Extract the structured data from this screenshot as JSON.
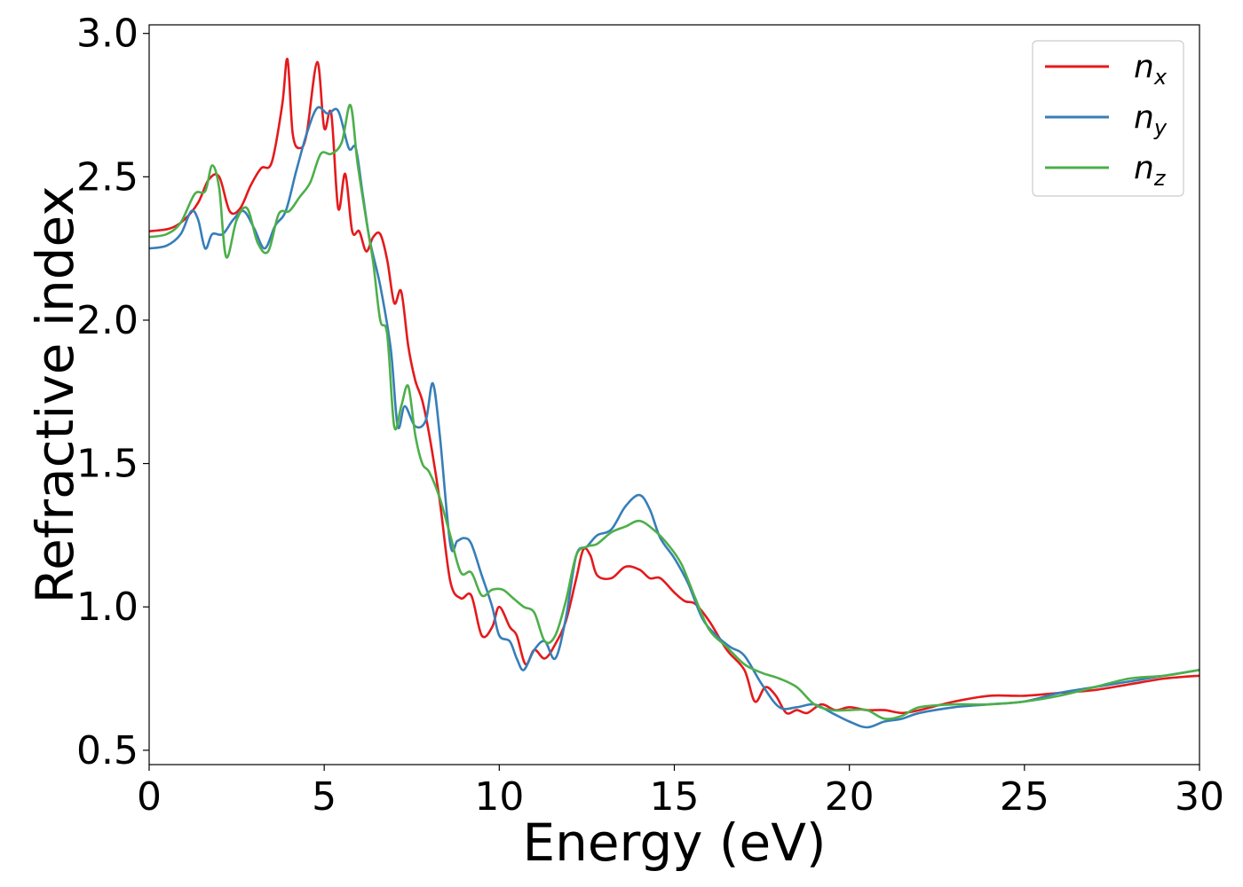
{
  "chart_data": {
    "type": "line",
    "title": "",
    "xlabel": "Energy (eV)",
    "ylabel": "Refractive index",
    "xlim": [
      0,
      30
    ],
    "ylim": [
      0.45,
      3.03
    ],
    "xticks": [
      0,
      5,
      10,
      15,
      20,
      25,
      30
    ],
    "xtick_labels": [
      "0",
      "5",
      "10",
      "15",
      "20",
      "25",
      "30"
    ],
    "yticks": [
      0.5,
      1.0,
      1.5,
      2.0,
      2.5,
      3.0
    ],
    "ytick_labels": [
      "0.5",
      "1.0",
      "1.5",
      "2.0",
      "2.5",
      "3.0"
    ],
    "grid": false,
    "legend_position": "top-right",
    "series": [
      {
        "name": "n",
        "subscript": "x",
        "color": "#e41a1c",
        "x": [
          0,
          0.6,
          1.0,
          1.4,
          1.7,
          2.0,
          2.3,
          2.6,
          2.9,
          3.2,
          3.5,
          3.8,
          3.95,
          4.1,
          4.3,
          4.5,
          4.8,
          5.0,
          5.2,
          5.4,
          5.6,
          5.8,
          6.0,
          6.2,
          6.4,
          6.6,
          6.8,
          7.0,
          7.2,
          7.4,
          7.6,
          7.8,
          8.0,
          8.3,
          8.6,
          8.9,
          9.2,
          9.5,
          9.8,
          10.0,
          10.3,
          10.5,
          10.75,
          11.0,
          11.3,
          11.6,
          11.9,
          12.2,
          12.4,
          12.6,
          12.8,
          13.2,
          13.6,
          14.0,
          14.3,
          14.6,
          15.0,
          15.3,
          15.6,
          16.0,
          16.5,
          17.0,
          17.3,
          17.6,
          17.9,
          18.2,
          18.5,
          18.8,
          19.2,
          19.6,
          20.0,
          20.5,
          21.0,
          21.5,
          22.0,
          23.0,
          24.0,
          25.0,
          26.0,
          27.0,
          28.0,
          29.0,
          30.0
        ],
        "values": [
          2.31,
          2.32,
          2.35,
          2.41,
          2.49,
          2.5,
          2.38,
          2.39,
          2.47,
          2.53,
          2.55,
          2.75,
          2.91,
          2.65,
          2.6,
          2.65,
          2.9,
          2.67,
          2.72,
          2.39,
          2.51,
          2.31,
          2.31,
          2.24,
          2.29,
          2.3,
          2.21,
          2.06,
          2.1,
          1.91,
          1.79,
          1.72,
          1.6,
          1.37,
          1.09,
          1.03,
          1.04,
          0.9,
          0.93,
          1.0,
          0.93,
          0.9,
          0.8,
          0.85,
          0.82,
          0.87,
          0.95,
          1.1,
          1.2,
          1.18,
          1.11,
          1.1,
          1.14,
          1.13,
          1.1,
          1.1,
          1.05,
          1.02,
          1.01,
          0.95,
          0.85,
          0.78,
          0.67,
          0.72,
          0.69,
          0.63,
          0.64,
          0.63,
          0.66,
          0.64,
          0.65,
          0.64,
          0.64,
          0.63,
          0.64,
          0.67,
          0.69,
          0.69,
          0.7,
          0.71,
          0.73,
          0.75,
          0.76
        ]
      },
      {
        "name": "n",
        "subscript": "y",
        "color": "#377eb8",
        "x": [
          0,
          0.5,
          0.9,
          1.2,
          1.4,
          1.6,
          1.8,
          2.1,
          2.4,
          2.7,
          3.0,
          3.3,
          3.6,
          3.9,
          4.2,
          4.5,
          4.8,
          5.1,
          5.4,
          5.7,
          5.9,
          6.1,
          6.3,
          6.6,
          6.9,
          7.1,
          7.3,
          7.6,
          7.9,
          8.1,
          8.3,
          8.6,
          8.8,
          9.0,
          9.2,
          9.5,
          9.8,
          10.0,
          10.3,
          10.5,
          10.7,
          11.0,
          11.3,
          11.6,
          11.9,
          12.2,
          12.5,
          12.8,
          13.2,
          13.6,
          14.0,
          14.3,
          14.6,
          15.0,
          15.4,
          15.8,
          16.2,
          16.6,
          17.0,
          17.5,
          18.0,
          18.5,
          19.0,
          19.5,
          20.0,
          20.5,
          21.0,
          21.5,
          22.0,
          23.0,
          24.0,
          25.0,
          26.0,
          27.0,
          28.0,
          29.0,
          30.0
        ],
        "values": [
          2.25,
          2.26,
          2.3,
          2.38,
          2.35,
          2.25,
          2.3,
          2.3,
          2.35,
          2.38,
          2.32,
          2.25,
          2.33,
          2.38,
          2.52,
          2.65,
          2.74,
          2.72,
          2.73,
          2.6,
          2.6,
          2.44,
          2.28,
          2.12,
          1.9,
          1.63,
          1.7,
          1.63,
          1.65,
          1.78,
          1.6,
          1.22,
          1.23,
          1.24,
          1.22,
          1.11,
          1.0,
          0.9,
          0.88,
          0.82,
          0.78,
          0.85,
          0.88,
          0.82,
          0.96,
          1.18,
          1.21,
          1.25,
          1.27,
          1.35,
          1.39,
          1.34,
          1.24,
          1.17,
          1.08,
          0.96,
          0.9,
          0.86,
          0.83,
          0.73,
          0.65,
          0.65,
          0.66,
          0.63,
          0.6,
          0.58,
          0.6,
          0.61,
          0.63,
          0.65,
          0.66,
          0.67,
          0.7,
          0.72,
          0.74,
          0.76,
          0.78
        ]
      },
      {
        "name": "n",
        "subscript": "z",
        "color": "#4daf4a",
        "x": [
          0,
          0.5,
          0.9,
          1.3,
          1.6,
          1.8,
          2.0,
          2.2,
          2.5,
          2.8,
          3.1,
          3.4,
          3.7,
          4.0,
          4.3,
          4.6,
          4.9,
          5.2,
          5.5,
          5.75,
          5.95,
          6.2,
          6.4,
          6.6,
          6.8,
          7.0,
          7.2,
          7.4,
          7.6,
          7.8,
          8.0,
          8.3,
          8.6,
          8.9,
          9.2,
          9.5,
          9.8,
          10.1,
          10.4,
          10.7,
          11.0,
          11.3,
          11.6,
          11.9,
          12.2,
          12.5,
          12.8,
          13.2,
          13.6,
          14.0,
          14.4,
          14.8,
          15.2,
          15.6,
          16.0,
          16.5,
          17.0,
          17.5,
          18.0,
          18.5,
          19.0,
          19.5,
          20.0,
          20.5,
          21.0,
          21.5,
          22.0,
          23.0,
          24.0,
          25.0,
          26.0,
          27.0,
          28.0,
          29.0,
          30.0
        ],
        "values": [
          2.29,
          2.3,
          2.34,
          2.44,
          2.45,
          2.54,
          2.46,
          2.22,
          2.35,
          2.39,
          2.27,
          2.24,
          2.37,
          2.38,
          2.43,
          2.48,
          2.58,
          2.58,
          2.62,
          2.75,
          2.55,
          2.35,
          2.2,
          2.0,
          1.95,
          1.63,
          1.7,
          1.77,
          1.6,
          1.5,
          1.47,
          1.38,
          1.25,
          1.12,
          1.12,
          1.04,
          1.06,
          1.06,
          1.03,
          1.0,
          0.98,
          0.88,
          0.9,
          1.02,
          1.18,
          1.21,
          1.22,
          1.26,
          1.28,
          1.3,
          1.27,
          1.22,
          1.15,
          1.03,
          0.92,
          0.86,
          0.8,
          0.77,
          0.75,
          0.72,
          0.66,
          0.64,
          0.64,
          0.64,
          0.61,
          0.62,
          0.65,
          0.66,
          0.66,
          0.67,
          0.69,
          0.72,
          0.75,
          0.76,
          0.78
        ]
      }
    ]
  }
}
